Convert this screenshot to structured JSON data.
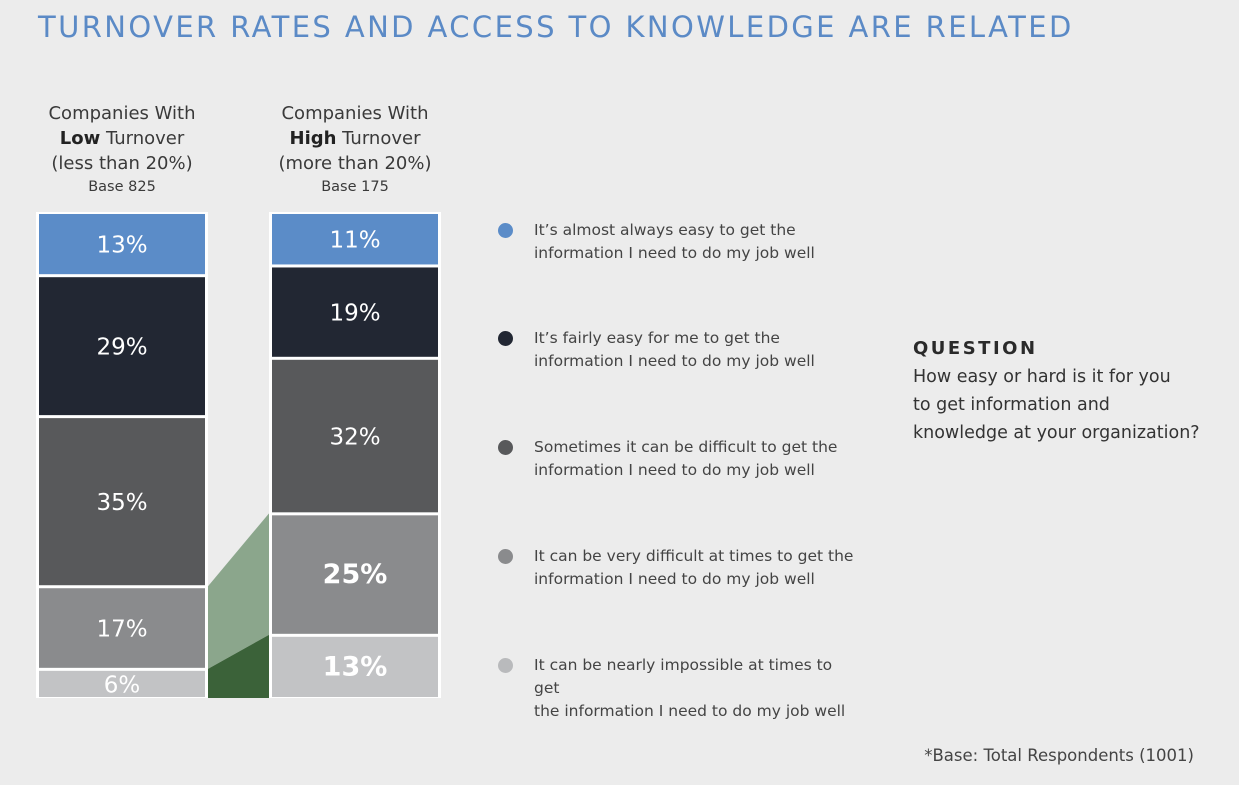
{
  "title": "TURNOVER RATES AND ACCESS TO KNOWLEDGE ARE RELATED",
  "columns": [
    {
      "line1": "Companies With",
      "emph": "Low",
      "rest": " Turnover",
      "range": "(less than 20%)",
      "base": "Base 825"
    },
    {
      "line1": "Companies With",
      "emph": "High",
      "rest": " Turnover",
      "range": "(more than 20%)",
      "base": "Base 175"
    }
  ],
  "chart_data": {
    "type": "bar",
    "stacked": true,
    "categories": [
      "Companies With Low Turnover (less than 20%)",
      "Companies With High Turnover (more than 20%)"
    ],
    "series": [
      {
        "name": "It’s almost always easy to get the information I need to do my job well",
        "values": [
          13,
          11
        ],
        "labels": [
          "13%",
          "11%"
        ],
        "color": "#5b8cc8"
      },
      {
        "name": "It’s fairly easy for me to get the information I need to do my job well",
        "values": [
          29,
          19
        ],
        "labels": [
          "29%",
          "19%"
        ],
        "color": "#222733"
      },
      {
        "name": "Sometimes it can be difficult to get the information I need to do my job well",
        "values": [
          35,
          32
        ],
        "labels": [
          "35%",
          "32%"
        ],
        "color": "#58595b"
      },
      {
        "name": "It can be very difficult at times to get the information I need to do my job well",
        "values": [
          17,
          25
        ],
        "labels": [
          "17%",
          "25%"
        ],
        "color": "#8a8b8d"
      },
      {
        "name": "It can be nearly impossible at times to get the information I need to do my job well",
        "values": [
          6,
          13
        ],
        "labels": [
          "6%",
          "13%"
        ],
        "color": "#c2c3c5"
      }
    ],
    "highlight_bold": [
      [
        false,
        false,
        false,
        false,
        false
      ],
      [
        false,
        false,
        false,
        true,
        true
      ]
    ],
    "connector_colors": {
      "upper": "#8ba68c",
      "lower": "#3b6239"
    }
  },
  "legend": [
    {
      "line1": "It’s almost always easy to get the",
      "line2": "information I need to do my job well",
      "color": "#5b8cc8"
    },
    {
      "line1": "It’s fairly easy for me to get the",
      "line2": "information I need to do my job well",
      "color": "#222733"
    },
    {
      "line1": "Sometimes it can be difficult to get the",
      "line2": "information I need to do my job well",
      "color": "#58595b"
    },
    {
      "line1": "It can be very difficult at times to get the",
      "line2": "information I need to do my job well",
      "color": "#8a8b8d"
    },
    {
      "line1": "It can be nearly impossible at times to get",
      "line2": "the information I need to do my job well",
      "color": "#b9babc"
    }
  ],
  "question": {
    "label": "QUESTION",
    "line1": "How easy or hard is it for you",
    "line2": "to get information and",
    "line3": "knowledge at your organization?"
  },
  "footnote": "*Base: Total Respondents (1001)"
}
